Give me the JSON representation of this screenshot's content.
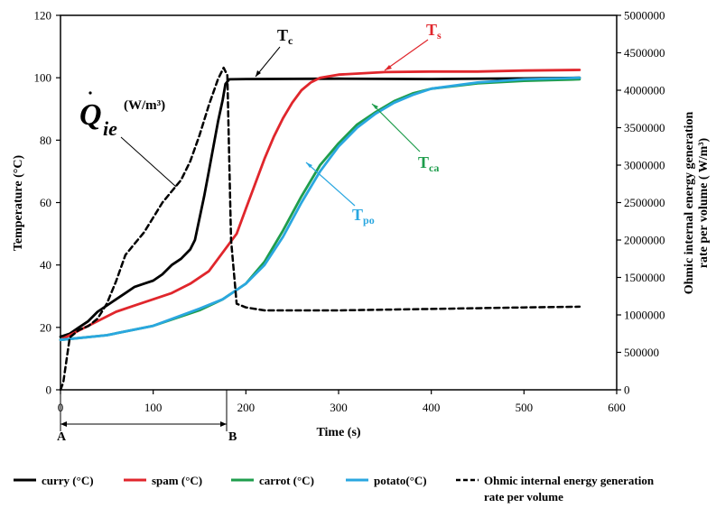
{
  "chart_data": {
    "type": "line",
    "xlabel": "Time (s)",
    "ylabel": "Temperature (°C)",
    "y2label_line1": "Ohmic internal energy generation",
    "y2label_line2": "rate per volume ( W/m³)",
    "xlim": [
      0,
      600
    ],
    "ylim": [
      0,
      120
    ],
    "y2lim": [
      0,
      5000000
    ],
    "xticks": [
      "0",
      "100",
      "200",
      "300",
      "400",
      "500",
      "600"
    ],
    "yticks": [
      "0",
      "20",
      "40",
      "60",
      "80",
      "100",
      "120"
    ],
    "y2ticks": [
      "0",
      "500000",
      "1000000",
      "1500000",
      "2000000",
      "2500000",
      "3000000",
      "3500000",
      "4000000",
      "4500000",
      "5000000"
    ],
    "grid": false,
    "legend_position": "bottom",
    "series": [
      {
        "name": "curry (°C)",
        "axis": "left",
        "color": "#000000",
        "dash": "solid",
        "points": [
          [
            0,
            17
          ],
          [
            10,
            18
          ],
          [
            20,
            20
          ],
          [
            30,
            22
          ],
          [
            40,
            25
          ],
          [
            50,
            27
          ],
          [
            60,
            29
          ],
          [
            70,
            31
          ],
          [
            80,
            33
          ],
          [
            90,
            34
          ],
          [
            100,
            35
          ],
          [
            110,
            37
          ],
          [
            120,
            40
          ],
          [
            130,
            42
          ],
          [
            140,
            45
          ],
          [
            145,
            48
          ],
          [
            150,
            55
          ],
          [
            155,
            62
          ],
          [
            160,
            70
          ],
          [
            165,
            78
          ],
          [
            170,
            86
          ],
          [
            175,
            93
          ],
          [
            178,
            98
          ],
          [
            182,
            99.5
          ],
          [
            200,
            99.6
          ],
          [
            300,
            99.7
          ],
          [
            400,
            99.6
          ],
          [
            500,
            99.8
          ],
          [
            560,
            100
          ]
        ]
      },
      {
        "name": "spam (°C)",
        "axis": "left",
        "color": "#e0262c",
        "dash": "solid",
        "points": [
          [
            0,
            16
          ],
          [
            20,
            19
          ],
          [
            40,
            22
          ],
          [
            60,
            25
          ],
          [
            80,
            27
          ],
          [
            100,
            29
          ],
          [
            120,
            31
          ],
          [
            140,
            34
          ],
          [
            160,
            38
          ],
          [
            180,
            46
          ],
          [
            190,
            50
          ],
          [
            200,
            58
          ],
          [
            210,
            66
          ],
          [
            220,
            74
          ],
          [
            230,
            81
          ],
          [
            240,
            87
          ],
          [
            250,
            92
          ],
          [
            260,
            96
          ],
          [
            270,
            98.5
          ],
          [
            280,
            100
          ],
          [
            300,
            101
          ],
          [
            350,
            101.8
          ],
          [
            400,
            102
          ],
          [
            450,
            102
          ],
          [
            500,
            102.3
          ],
          [
            560,
            102.5
          ]
        ]
      },
      {
        "name": "carrot (°C)",
        "axis": "left",
        "color": "#1e9d4c",
        "dash": "solid",
        "points": [
          [
            0,
            16
          ],
          [
            50,
            17.5
          ],
          [
            100,
            20.5
          ],
          [
            150,
            25.5
          ],
          [
            175,
            29
          ],
          [
            200,
            34
          ],
          [
            220,
            41
          ],
          [
            240,
            51
          ],
          [
            260,
            62
          ],
          [
            280,
            72
          ],
          [
            300,
            79
          ],
          [
            320,
            85
          ],
          [
            340,
            89
          ],
          [
            360,
            92.5
          ],
          [
            380,
            95
          ],
          [
            400,
            96.5
          ],
          [
            450,
            98.2
          ],
          [
            500,
            99
          ],
          [
            560,
            99.5
          ]
        ]
      },
      {
        "name": "potato(°C)",
        "axis": "left",
        "color": "#2aa7e0",
        "dash": "solid",
        "points": [
          [
            0,
            16
          ],
          [
            50,
            17.5
          ],
          [
            100,
            20.5
          ],
          [
            150,
            26
          ],
          [
            175,
            29
          ],
          [
            200,
            34
          ],
          [
            220,
            40
          ],
          [
            240,
            49
          ],
          [
            260,
            60
          ],
          [
            280,
            70
          ],
          [
            300,
            78
          ],
          [
            320,
            84
          ],
          [
            340,
            88.5
          ],
          [
            360,
            92
          ],
          [
            380,
            94.5
          ],
          [
            400,
            96.5
          ],
          [
            450,
            98.5
          ],
          [
            500,
            99.5
          ],
          [
            560,
            100
          ]
        ]
      },
      {
        "name": "Ohmic internal energy generation rate per volume",
        "axis": "right",
        "color": "#000000",
        "dash": "dashed",
        "points": [
          [
            0,
            0
          ],
          [
            3,
            100000
          ],
          [
            10,
            700000
          ],
          [
            20,
            800000
          ],
          [
            30,
            850000
          ],
          [
            40,
            950000
          ],
          [
            50,
            1150000
          ],
          [
            60,
            1450000
          ],
          [
            70,
            1800000
          ],
          [
            80,
            1950000
          ],
          [
            90,
            2100000
          ],
          [
            100,
            2300000
          ],
          [
            110,
            2500000
          ],
          [
            120,
            2650000
          ],
          [
            130,
            2800000
          ],
          [
            140,
            3050000
          ],
          [
            150,
            3400000
          ],
          [
            160,
            3800000
          ],
          [
            170,
            4150000
          ],
          [
            176,
            4300000
          ],
          [
            180,
            4200000
          ],
          [
            184,
            2000000
          ],
          [
            190,
            1150000
          ],
          [
            200,
            1100000
          ],
          [
            220,
            1060000
          ],
          [
            300,
            1060000
          ],
          [
            400,
            1080000
          ],
          [
            500,
            1100000
          ],
          [
            560,
            1110000
          ]
        ]
      }
    ],
    "annotations": {
      "qdot": "Q",
      "qdot_sub": "ie",
      "qdot_unit": "(W/m³)",
      "tc": "T",
      "tc_sub": "c",
      "ts": "T",
      "ts_sub": "s",
      "tca": "T",
      "tca_sub": "ca",
      "tpo": "T",
      "tpo_sub": "po",
      "label_a": "A",
      "label_b": "B"
    }
  }
}
